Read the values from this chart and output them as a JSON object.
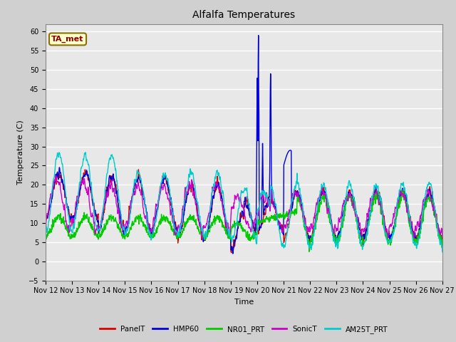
{
  "title": "Alfalfa Temperatures",
  "xlabel": "Time",
  "ylabel": "Temperature (C)",
  "ylim": [
    -5,
    62
  ],
  "yticks": [
    -5,
    0,
    5,
    10,
    15,
    20,
    25,
    30,
    35,
    40,
    45,
    50,
    55,
    60
  ],
  "fig_bg": "#d0d0d0",
  "plot_bg": "#e8e8e8",
  "annotation_text": "TA_met",
  "annotation_color": "#8b0000",
  "annotation_bg": "#ffffcc",
  "annotation_edge": "#8b7000",
  "series_colors": {
    "PanelT": "#dd0000",
    "HMP60": "#0000dd",
    "NR01_PRT": "#00cc00",
    "SonicT": "#cc00cc",
    "AM25T_PRT": "#00cccc"
  },
  "lw": 1.0,
  "grid_color": "#ffffff",
  "start_day": 12,
  "end_day": 27,
  "pts_per_day": 96,
  "title_fontsize": 10,
  "axis_fontsize": 8,
  "tick_fontsize": 7
}
